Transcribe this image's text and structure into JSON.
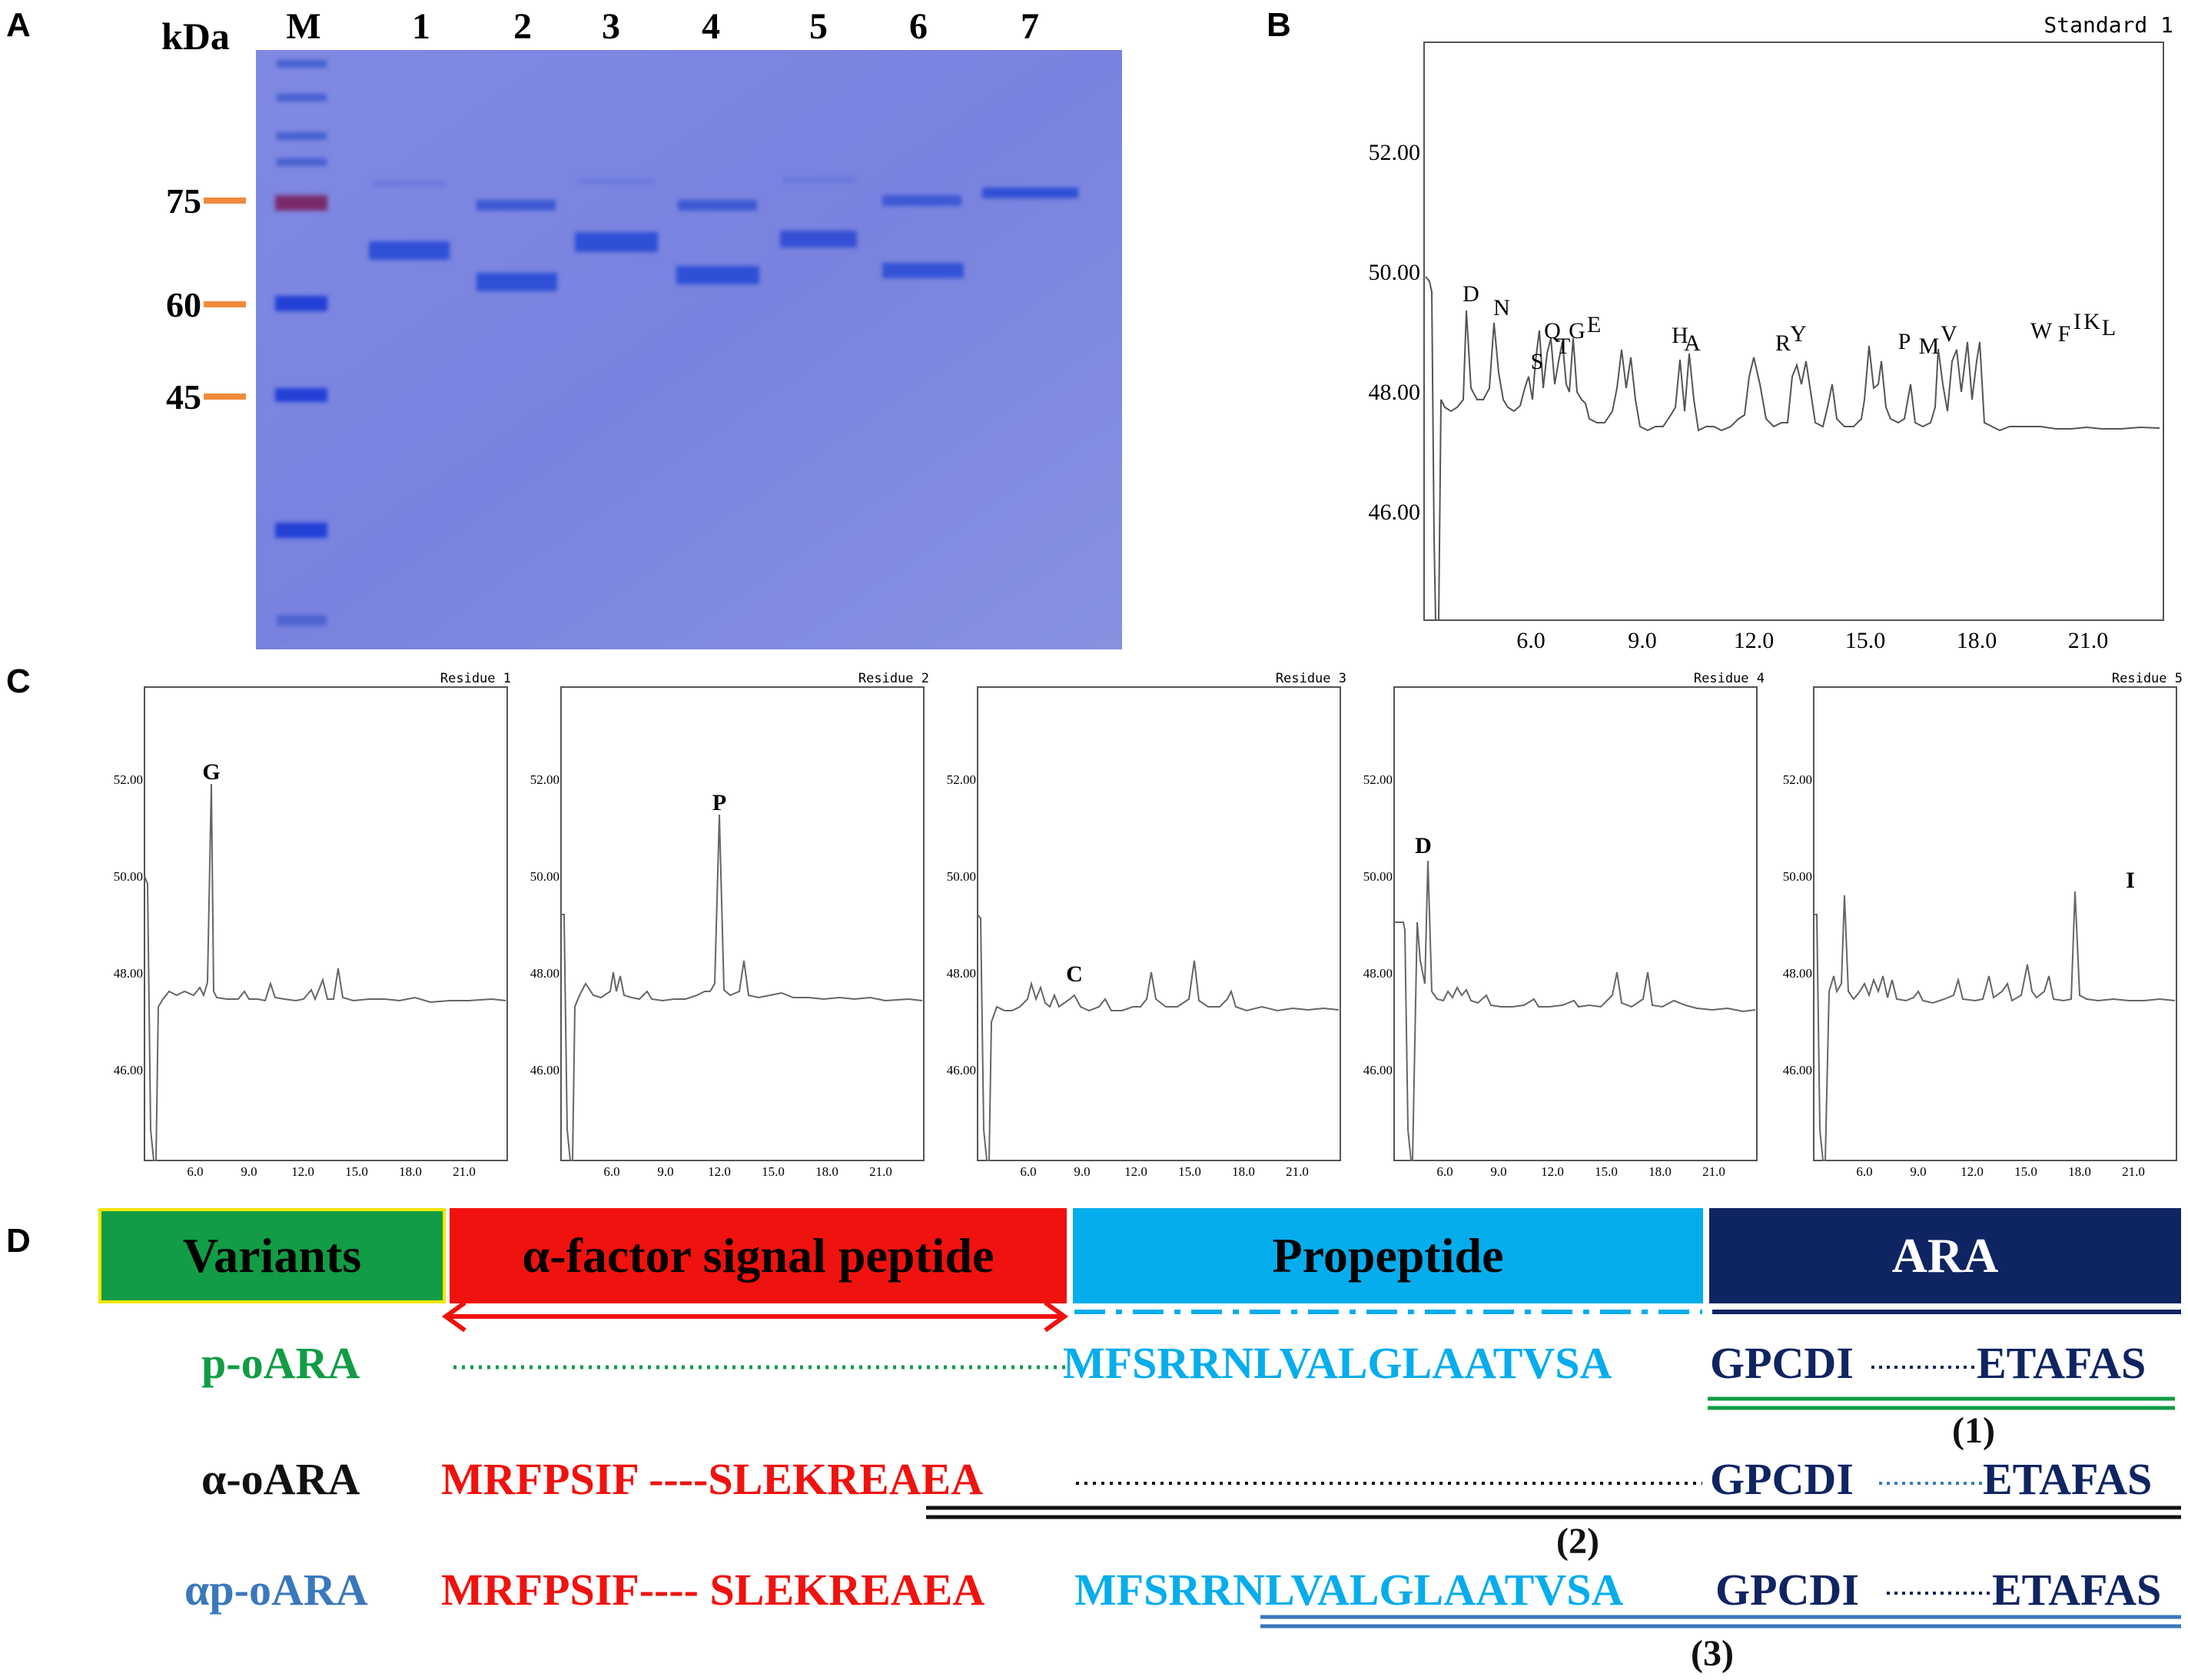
{
  "panels": {
    "a": "A",
    "b": "B",
    "c": "C",
    "d": "D"
  },
  "gel": {
    "unit": "kDa",
    "lanes": [
      "M",
      "1",
      "2",
      "3",
      "4",
      "5",
      "6",
      "7"
    ],
    "markers": [
      "75",
      "60",
      "45"
    ],
    "bg_color": "#7b85e0",
    "band_color": "#2e4fd6",
    "marker_tick_color": "#f08a3c"
  },
  "standard": {
    "title": "Standard 1",
    "y_ticks": [
      "52.00",
      "50.00",
      "48.00",
      "46.00"
    ],
    "x_ticks": [
      "6.0",
      "9.0",
      "12.0",
      "15.0",
      "18.0",
      "21.0"
    ],
    "peak_labels": [
      "D",
      "N",
      "S",
      "Q",
      "T",
      "G",
      "E",
      "H",
      "A",
      "R",
      "Y",
      "P",
      "M",
      "V",
      "W",
      "F",
      "I",
      "K",
      "L"
    ]
  },
  "residues": [
    {
      "title": "Residue 1",
      "peak": "G"
    },
    {
      "title": "Residue 2",
      "peak": "P"
    },
    {
      "title": "Residue 3",
      "peak": "C"
    },
    {
      "title": "Residue 4",
      "peak": "D"
    },
    {
      "title": "Residue 5",
      "peak": "I"
    }
  ],
  "residue_axes": {
    "y_ticks": [
      "52.00",
      "50.00",
      "48.00",
      "46.00"
    ],
    "x_ticks": [
      "6.0",
      "9.0",
      "12.0",
      "15.0",
      "18.0",
      "21.0"
    ]
  },
  "scheme": {
    "headers": {
      "variants": "Variants",
      "signal": "α-factor signal peptide",
      "propeptide": "Propeptide",
      "ara": "ARA"
    },
    "colors": {
      "green": "#119c45",
      "red": "#f0120e",
      "cyan": "#06adec",
      "navy": "#0f2462",
      "blue": "#3a78bd"
    },
    "rows": [
      {
        "name": "p-oARA",
        "signal": "",
        "propeptide": "MFSRRNLVALGLAATVSA",
        "ara_start": "GPCDI",
        "ara_end": "ETAFAS",
        "note": "(1)"
      },
      {
        "name": "α-oARA",
        "signal": "MRFPSIF ----SLEKREAEA",
        "propeptide": "",
        "ara_start": "GPCDI",
        "ara_end": "ETAFAS",
        "note": "(2)"
      },
      {
        "name": "αp-oARA",
        "signal": "MRFPSIF---- SLEKREAEA",
        "propeptide": "MFSRRNLVALGLAATVSA",
        "ara_start": "GPCDI",
        "ara_end": "ETAFAS",
        "note": "(3)"
      }
    ]
  }
}
